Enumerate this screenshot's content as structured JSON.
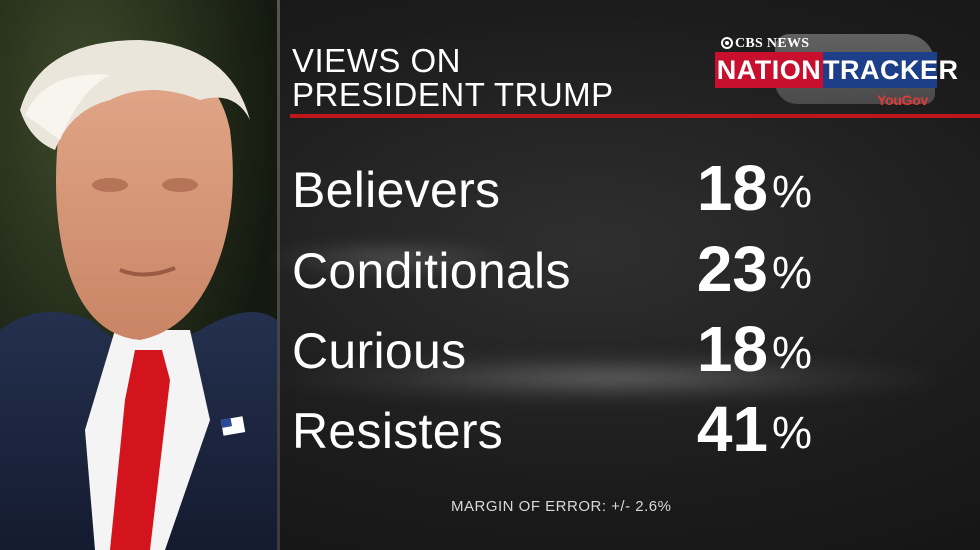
{
  "headline": {
    "line1": "VIEWS ON",
    "line2": "PRESIDENT TRUMP"
  },
  "logo": {
    "network": "CBS NEWS",
    "word1": "NATION",
    "word2": "TRACKER",
    "partner": "YouGov"
  },
  "rows": [
    {
      "label": "Believers",
      "value": "18",
      "unit": "%"
    },
    {
      "label": "Conditionals",
      "value": "23",
      "unit": "%"
    },
    {
      "label": "Curious",
      "value": "18",
      "unit": "%"
    },
    {
      "label": "Resisters",
      "value": "41",
      "unit": "%"
    }
  ],
  "footnote": "MARGIN OF ERROR: +/- 2.6%",
  "colors": {
    "accent_red": "#c0161b",
    "logo_red": "#c8102e",
    "logo_blue": "#1d3f8a",
    "text": "#ffffff"
  },
  "photo": {
    "icon": "portrait-photo-icon"
  }
}
